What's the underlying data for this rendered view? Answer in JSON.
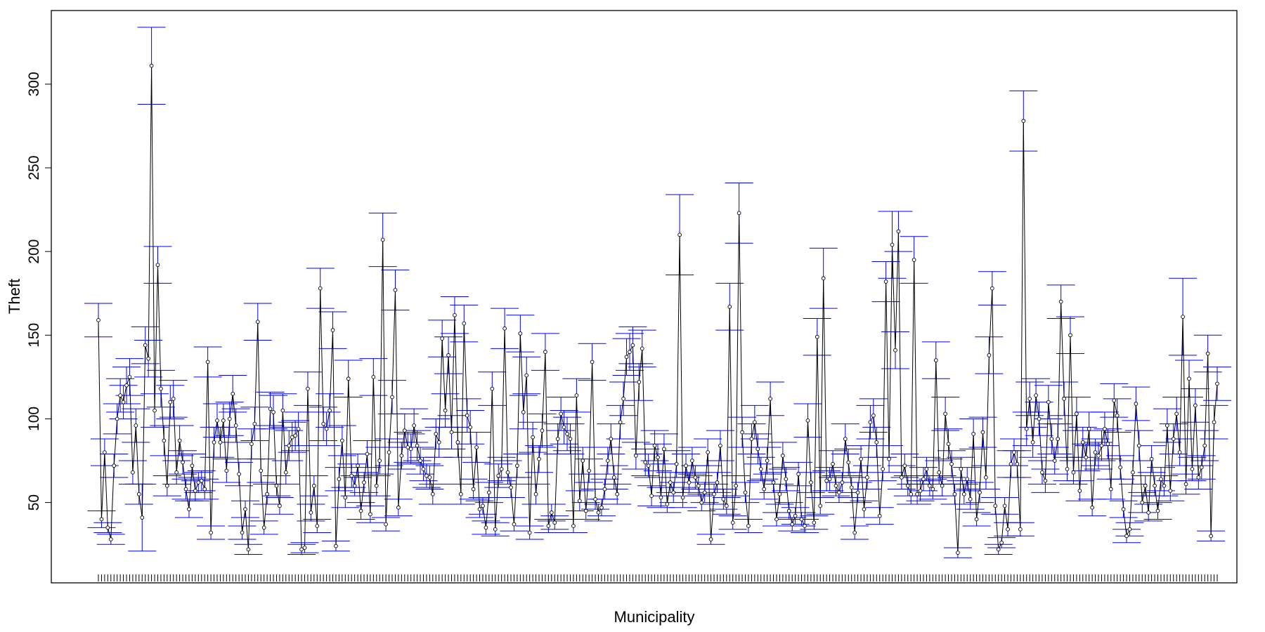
{
  "chart_data": {
    "type": "line",
    "title": "",
    "xlabel": "Municipality",
    "ylabel": "Theft",
    "ylim": [
      2.0,
      344.0
    ],
    "yticks": [
      50,
      100,
      150,
      200,
      250,
      300
    ],
    "yticks_labels": [
      "50",
      "100",
      "150",
      "200",
      "250",
      "300"
    ],
    "grid": false,
    "legend": "none",
    "colors": {
      "line": "#000000",
      "error_bar": "#0000ff",
      "frame": "#000000"
    },
    "series": [
      {
        "values": [
          159,
          40,
          80,
          35,
          28,
          72,
          100,
          114,
          110,
          120,
          125,
          68,
          96,
          55,
          41,
          144,
          136,
          311,
          105,
          192,
          118,
          87,
          60,
          110,
          112,
          68,
          87,
          74,
          58,
          46,
          72,
          57,
          62,
          63,
          58,
          134,
          32,
          86,
          99,
          86,
          99,
          69,
          100,
          115,
          96,
          67,
          32,
          46,
          22,
          85,
          97,
          158,
          69,
          35,
          55,
          106,
          104,
          60,
          48,
          105,
          68,
          84,
          89,
          90,
          94,
          22,
          23,
          118,
          44,
          60,
          36,
          178,
          97,
          94,
          105,
          153,
          24,
          64,
          87,
          53,
          124,
          66,
          60,
          72,
          45,
          62,
          79,
          43,
          125,
          60,
          75,
          207,
          37,
          80,
          113,
          177,
          47,
          78,
          93,
          83,
          82,
          96,
          84,
          75,
          70,
          66,
          65,
          55,
          91,
          86,
          148,
          105,
          138,
          92,
          162,
          86,
          55,
          157,
          102,
          95,
          58,
          83,
          46,
          48,
          35,
          56,
          118,
          34,
          66,
          70,
          154,
          68,
          59,
          37,
          72,
          151,
          104,
          126,
          32,
          89,
          55,
          76,
          93,
          140,
          36,
          44,
          38,
          88,
          103,
          95,
          91,
          88,
          36,
          114,
          51,
          75,
          45,
          69,
          134,
          52,
          44,
          47,
          58,
          75,
          88,
          65,
          55,
          98,
          112,
          137,
          140,
          144,
          78,
          122,
          142,
          74,
          72,
          54,
          84,
          77,
          53,
          82,
          49,
          62,
          56,
          73,
          210,
          53,
          72,
          62,
          75,
          65,
          60,
          50,
          56,
          80,
          28,
          55,
          62,
          84,
          52,
          48,
          167,
          38,
          60,
          223,
          92,
          56,
          36,
          88,
          98,
          82,
          70,
          58,
          75,
          112,
          62,
          40,
          55,
          78,
          64,
          45,
          37,
          42,
          67,
          40,
          36,
          99,
          62,
          38,
          149,
          48,
          184,
          63,
          64,
          73,
          60,
          56,
          62,
          88,
          74,
          59,
          32,
          56,
          76,
          46,
          65,
          98,
          102,
          86,
          42,
          70,
          182,
          76,
          204,
          141,
          212,
          65,
          72,
          60,
          55,
          195,
          55,
          57,
          64,
          70,
          60,
          58,
          135,
          68,
          60,
          103,
          85,
          73,
          55,
          20,
          70,
          55,
          64,
          52,
          91,
          40,
          56,
          92,
          65,
          138,
          178,
          48,
          22,
          26,
          48,
          34,
          73,
          80,
          73,
          34,
          278,
          94,
          112,
          86,
          114,
          100,
          68,
          63,
          110,
          88,
          75,
          88,
          170,
          112,
          70,
          150,
          68,
          103,
          57,
          86,
          77,
          94,
          47,
          80,
          78,
          84,
          94,
          85,
          58,
          111,
          102,
          71,
          46,
          30,
          34,
          68,
          109,
          84,
          50,
          60,
          44,
          76,
          60,
          45,
          64,
          60,
          96,
          57,
          88,
          103,
          80,
          161,
          61,
          124,
          70,
          108,
          65,
          71,
          84,
          139,
          30,
          98,
          121
        ],
        "error_half_width": [
          10,
          5,
          8,
          3,
          3,
          7,
          9,
          10,
          10,
          11,
          11,
          7,
          10,
          6,
          20,
          11,
          11,
          23,
          10,
          11,
          11,
          9,
          6,
          10,
          11,
          7,
          9,
          7,
          6,
          5,
          7,
          6,
          6,
          6,
          6,
          9,
          4,
          9,
          10,
          9,
          10,
          7,
          10,
          11,
          10,
          7,
          4,
          5,
          3,
          9,
          10,
          11,
          7,
          4,
          6,
          10,
          10,
          6,
          5,
          10,
          7,
          9,
          9,
          9,
          10,
          3,
          3,
          10,
          5,
          6,
          4,
          12,
          10,
          10,
          10,
          11,
          3,
          7,
          9,
          6,
          11,
          7,
          6,
          7,
          5,
          6,
          8,
          5,
          11,
          6,
          8,
          16,
          4,
          8,
          10,
          12,
          5,
          8,
          10,
          9,
          9,
          10,
          9,
          8,
          7,
          7,
          7,
          6,
          9,
          9,
          11,
          10,
          11,
          10,
          11,
          9,
          6,
          11,
          10,
          10,
          6,
          9,
          5,
          5,
          4,
          6,
          10,
          4,
          7,
          7,
          12,
          7,
          6,
          4,
          7,
          11,
          10,
          11,
          4,
          9,
          6,
          8,
          10,
          11,
          4,
          5,
          4,
          9,
          10,
          10,
          10,
          9,
          4,
          10,
          6,
          8,
          5,
          7,
          11,
          6,
          5,
          5,
          6,
          8,
          9,
          7,
          6,
          10,
          10,
          11,
          11,
          11,
          8,
          11,
          11,
          8,
          7,
          6,
          9,
          8,
          6,
          9,
          5,
          6,
          6,
          8,
          24,
          6,
          7,
          6,
          8,
          7,
          6,
          5,
          6,
          8,
          3,
          6,
          6,
          9,
          6,
          5,
          14,
          4,
          6,
          18,
          9,
          6,
          4,
          9,
          10,
          9,
          7,
          6,
          8,
          10,
          6,
          4,
          6,
          8,
          7,
          5,
          4,
          5,
          7,
          4,
          4,
          10,
          6,
          4,
          11,
          5,
          18,
          6,
          7,
          8,
          6,
          6,
          6,
          9,
          8,
          6,
          4,
          6,
          8,
          5,
          7,
          10,
          10,
          9,
          5,
          7,
          12,
          8,
          20,
          11,
          12,
          7,
          7,
          6,
          6,
          14,
          6,
          6,
          7,
          7,
          6,
          6,
          11,
          7,
          6,
          10,
          9,
          8,
          6,
          3,
          7,
          6,
          7,
          6,
          9,
          4,
          6,
          9,
          7,
          11,
          10,
          5,
          3,
          3,
          5,
          4,
          8,
          8,
          8,
          4,
          18,
          10,
          10,
          9,
          10,
          10,
          7,
          7,
          10,
          9,
          8,
          9,
          10,
          10,
          7,
          11,
          7,
          10,
          6,
          9,
          8,
          10,
          5,
          8,
          8,
          9,
          10,
          9,
          6,
          10,
          10,
          7,
          5,
          4,
          4,
          7,
          10,
          9,
          6,
          6,
          5,
          8,
          6,
          5,
          7,
          6,
          10,
          6,
          9,
          10,
          8,
          23,
          6,
          11,
          7,
          10,
          7,
          7,
          9,
          11,
          3,
          10,
          10
        ]
      }
    ]
  }
}
